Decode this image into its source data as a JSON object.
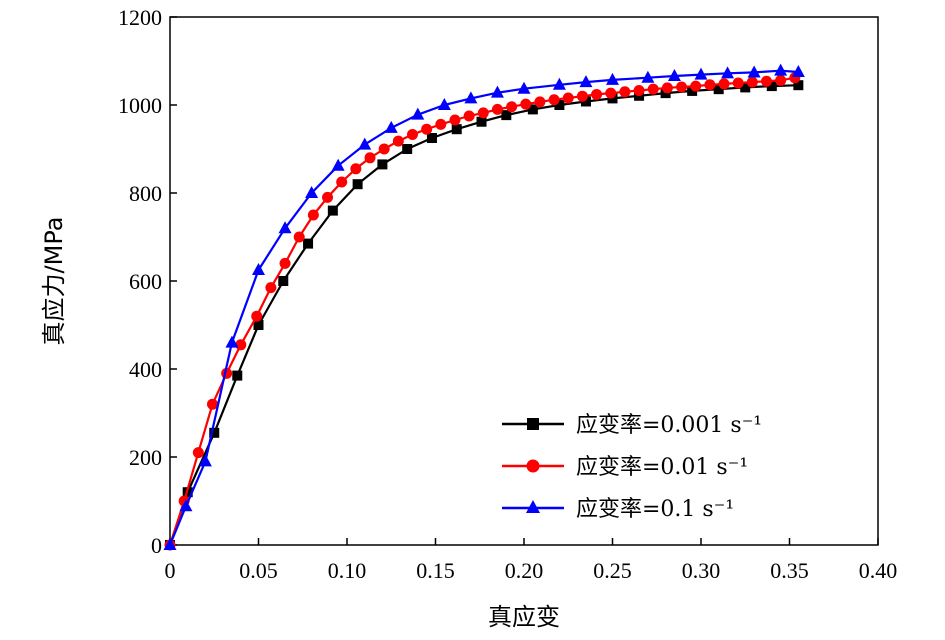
{
  "chart_data": {
    "type": "line",
    "xlabel": "真应变",
    "ylabel": "真应力/MPa",
    "xlim": [
      0,
      0.4
    ],
    "ylim": [
      0,
      1200
    ],
    "x_ticks": [
      "0",
      "0.05",
      "0.10",
      "0.15",
      "0.20",
      "0.25",
      "0.30",
      "0.35",
      "0.40"
    ],
    "y_ticks": [
      "0",
      "200",
      "400",
      "600",
      "800",
      "1000",
      "1200"
    ],
    "grid": false,
    "legend_position": "bottom-right",
    "series": [
      {
        "name": "应变率=0.001 s⁻¹",
        "color": "#000000",
        "marker": "square",
        "x": [
          0,
          0.01,
          0.025,
          0.038,
          0.05,
          0.064,
          0.078,
          0.092,
          0.106,
          0.12,
          0.134,
          0.148,
          0.162,
          0.176,
          0.19,
          0.205,
          0.22,
          0.235,
          0.25,
          0.265,
          0.28,
          0.295,
          0.31,
          0.325,
          0.34,
          0.355
        ],
        "y": [
          0,
          120,
          255,
          385,
          500,
          600,
          685,
          760,
          820,
          865,
          900,
          925,
          945,
          962,
          977,
          990,
          1000,
          1008,
          1015,
          1021,
          1027,
          1032,
          1036,
          1040,
          1043,
          1045
        ]
      },
      {
        "name": "应变率=0.01 s⁻¹",
        "color": "#ff0000",
        "marker": "circle",
        "x": [
          0,
          0.008,
          0.016,
          0.024,
          0.032,
          0.04,
          0.049,
          0.057,
          0.065,
          0.073,
          0.081,
          0.089,
          0.097,
          0.105,
          0.113,
          0.121,
          0.129,
          0.137,
          0.145,
          0.153,
          0.161,
          0.169,
          0.177,
          0.185,
          0.193,
          0.201,
          0.209,
          0.217,
          0.225,
          0.233,
          0.241,
          0.249,
          0.257,
          0.265,
          0.273,
          0.281,
          0.289,
          0.297,
          0.305,
          0.313,
          0.321,
          0.329,
          0.337,
          0.345,
          0.353
        ],
        "y": [
          0,
          100,
          210,
          320,
          390,
          455,
          520,
          585,
          640,
          700,
          750,
          790,
          825,
          855,
          880,
          900,
          918,
          933,
          945,
          956,
          966,
          975,
          982,
          990,
          996,
          1002,
          1007,
          1012,
          1016,
          1020,
          1024,
          1027,
          1030,
          1033,
          1036,
          1039,
          1041,
          1043,
          1046,
          1048,
          1050,
          1052,
          1054,
          1056,
          1062
        ]
      },
      {
        "name": "应变率=0.1 s⁻¹",
        "color": "#0000ff",
        "marker": "triangle",
        "x": [
          0,
          0.009,
          0.02,
          0.035,
          0.05,
          0.065,
          0.08,
          0.095,
          0.11,
          0.125,
          0.14,
          0.155,
          0.17,
          0.185,
          0.2,
          0.22,
          0.235,
          0.25,
          0.27,
          0.285,
          0.3,
          0.315,
          0.33,
          0.345,
          0.355
        ],
        "y": [
          0,
          88,
          190,
          460,
          625,
          720,
          800,
          862,
          910,
          948,
          978,
          1000,
          1015,
          1028,
          1037,
          1046,
          1052,
          1057,
          1062,
          1066,
          1069,
          1072,
          1074,
          1078,
          1075
        ]
      }
    ]
  }
}
